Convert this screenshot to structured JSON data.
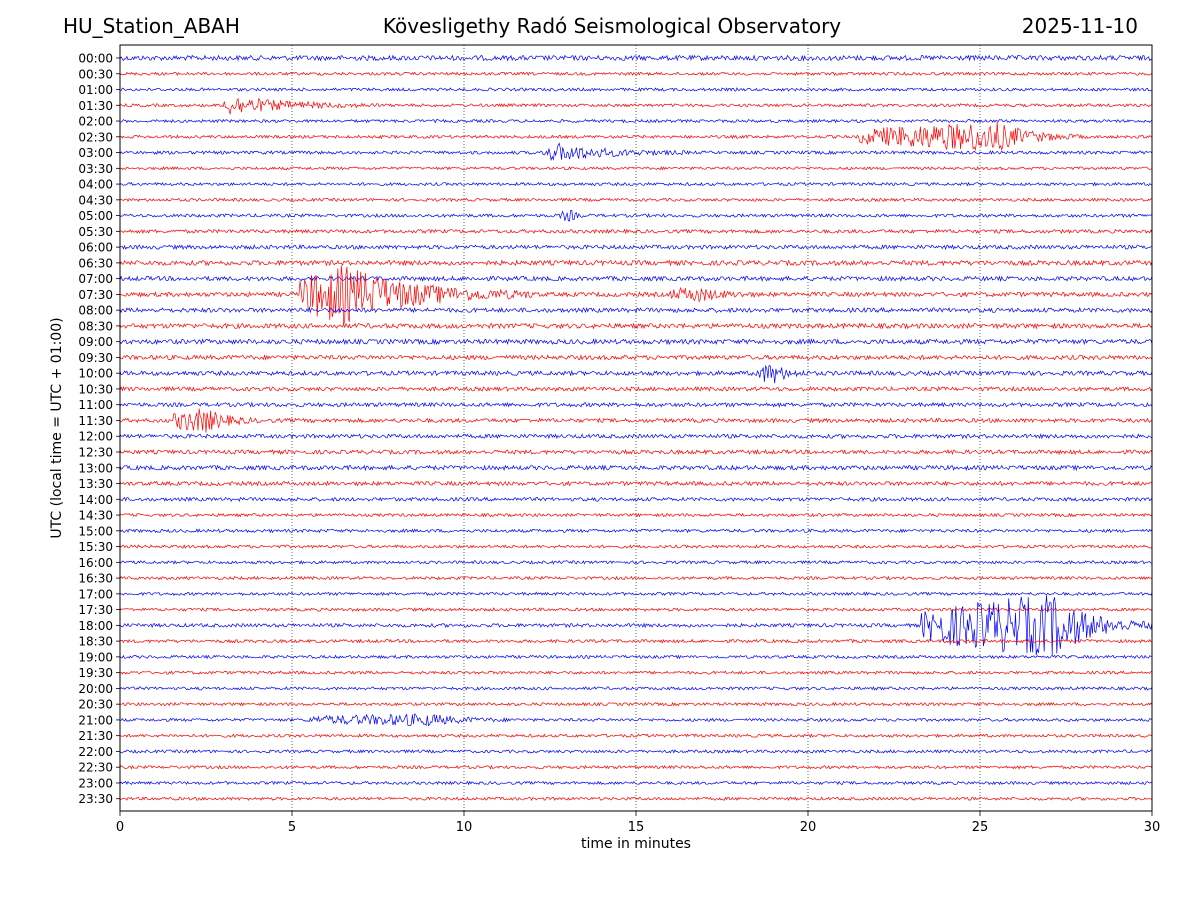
{
  "header": {
    "station": "HU_Station_ABAH",
    "observatory": "Kövesligethy Radó Seismological Observatory",
    "date": "2025-11-10"
  },
  "chart_data": {
    "type": "line",
    "title": "Kövesligethy Radó Seismological Observatory",
    "xlabel": "time in minutes",
    "ylabel": "UTC (local time = UTC + 01:00)",
    "xlim": [
      0,
      30
    ],
    "xticks": [
      "0",
      "5",
      "10",
      "15",
      "20",
      "25",
      "30"
    ],
    "grid": "vertical dotted at 5-minute ticks",
    "colors": {
      "even_rows": "#0000ff",
      "odd_rows": "#ff0000",
      "grid": "#000000"
    },
    "rows": [
      "00:00",
      "00:30",
      "01:00",
      "01:30",
      "02:00",
      "02:30",
      "03:00",
      "03:30",
      "04:00",
      "04:30",
      "05:00",
      "05:30",
      "06:00",
      "06:30",
      "07:00",
      "07:30",
      "08:00",
      "08:30",
      "09:00",
      "09:30",
      "10:00",
      "10:30",
      "11:00",
      "11:30",
      "12:00",
      "12:30",
      "13:00",
      "13:30",
      "14:00",
      "14:30",
      "15:00",
      "15:30",
      "16:00",
      "16:30",
      "17:00",
      "17:30",
      "18:00",
      "18:30",
      "19:00",
      "19:30",
      "20:00",
      "20:30",
      "21:00",
      "21:30",
      "22:00",
      "22:30",
      "23:00",
      "23:30"
    ],
    "base_noise": [
      2.5,
      1.5,
      1.5,
      1.5,
      1.5,
      1.5,
      1.6,
      1.4,
      1.5,
      1.5,
      1.6,
      1.8,
      2,
      2.4,
      2.2,
      2.2,
      2.2,
      2.4,
      2.4,
      2.2,
      2.2,
      2,
      2,
      2,
      2,
      2,
      2.2,
      2,
      1.8,
      1.5,
      1.6,
      1.5,
      1.5,
      1.5,
      1.5,
      1.5,
      1.8,
      1.6,
      1.5,
      1.5,
      1.5,
      1.5,
      1.5,
      1.5,
      1.5,
      1.5,
      1.5,
      1.5
    ],
    "events": [
      {
        "row": "01:30",
        "start_min": 3.0,
        "end_min": 7.5,
        "peak_min": 3.2,
        "peak_amp": 9
      },
      {
        "row": "02:30",
        "start_min": 21.5,
        "end_min": 28.0,
        "peak_min": 25.5,
        "peak_amp": 14
      },
      {
        "row": "03:00",
        "start_min": 12.3,
        "end_min": 16.5,
        "peak_min": 12.8,
        "peak_amp": 8
      },
      {
        "row": "05:00",
        "start_min": 12.8,
        "end_min": 13.5,
        "peak_min": 13.1,
        "peak_amp": 5
      },
      {
        "row": "07:30",
        "start_min": 5.2,
        "end_min": 12.0,
        "peak_min": 6.5,
        "peak_amp": 28
      },
      {
        "row": "07:30",
        "start_min": 16.0,
        "end_min": 18.5,
        "peak_min": 16.8,
        "peak_amp": 6
      },
      {
        "row": "10:00",
        "start_min": 18.5,
        "end_min": 20.0,
        "peak_min": 19.0,
        "peak_amp": 9
      },
      {
        "row": "11:30",
        "start_min": 1.5,
        "end_min": 4.0,
        "peak_min": 2.5,
        "peak_amp": 11
      },
      {
        "row": "18:00",
        "start_min": 23.3,
        "end_min": 30.0,
        "peak_min": 27.2,
        "peak_amp": 30
      },
      {
        "row": "21:00",
        "start_min": 5.5,
        "end_min": 11.5,
        "peak_min": 9.0,
        "peak_amp": 5
      }
    ]
  }
}
